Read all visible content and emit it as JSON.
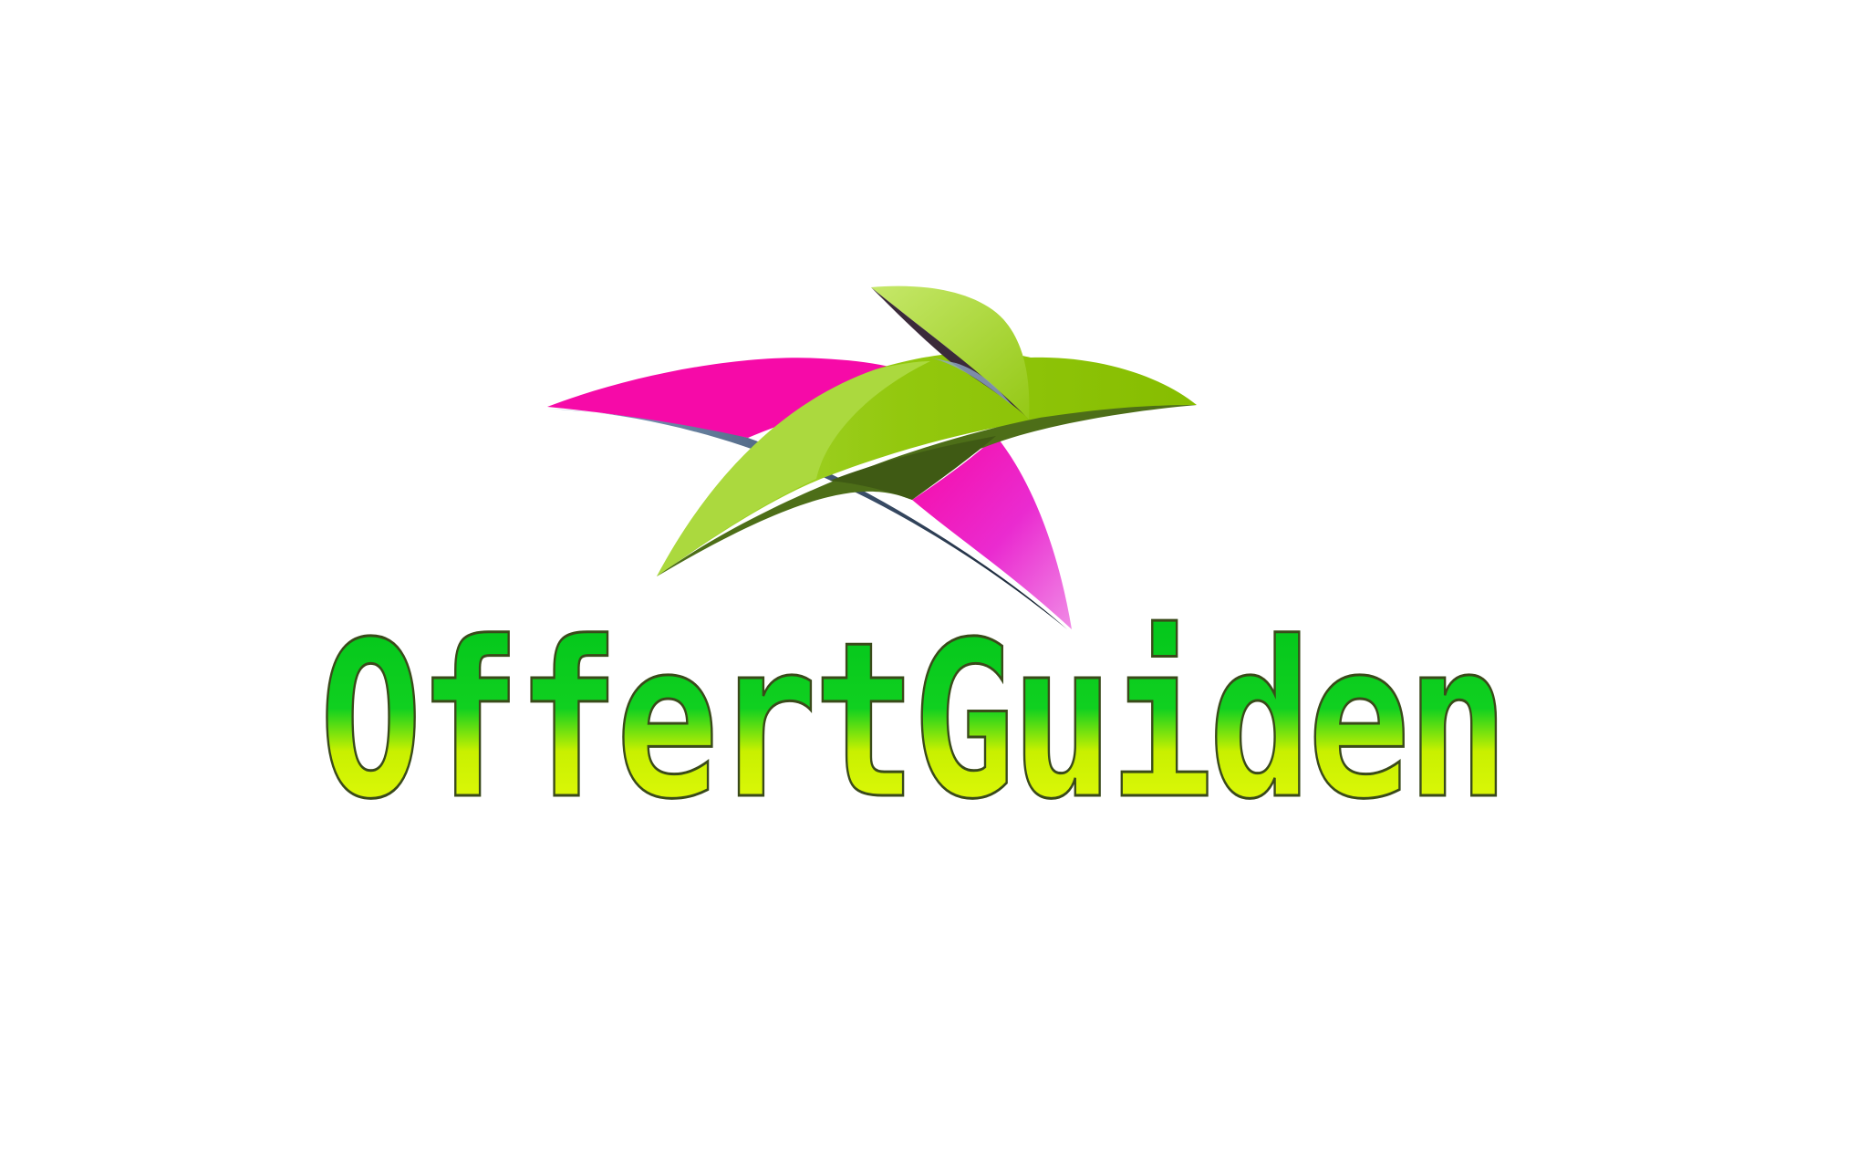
{
  "brand": {
    "name": "OffertGuiden",
    "colors": {
      "background": "#ffffff",
      "magenta": "#f00ca8",
      "magenta_light": "#ee7de8",
      "leaf_green": "#8cc300",
      "leaf_light": "#b4de4c",
      "leaf_dark": "#3e5a12",
      "text_green": "#00c81e",
      "text_yellow": "#eaff00",
      "text_outline": "#3a4a1a"
    },
    "icon": "bird-leaf-icon"
  }
}
